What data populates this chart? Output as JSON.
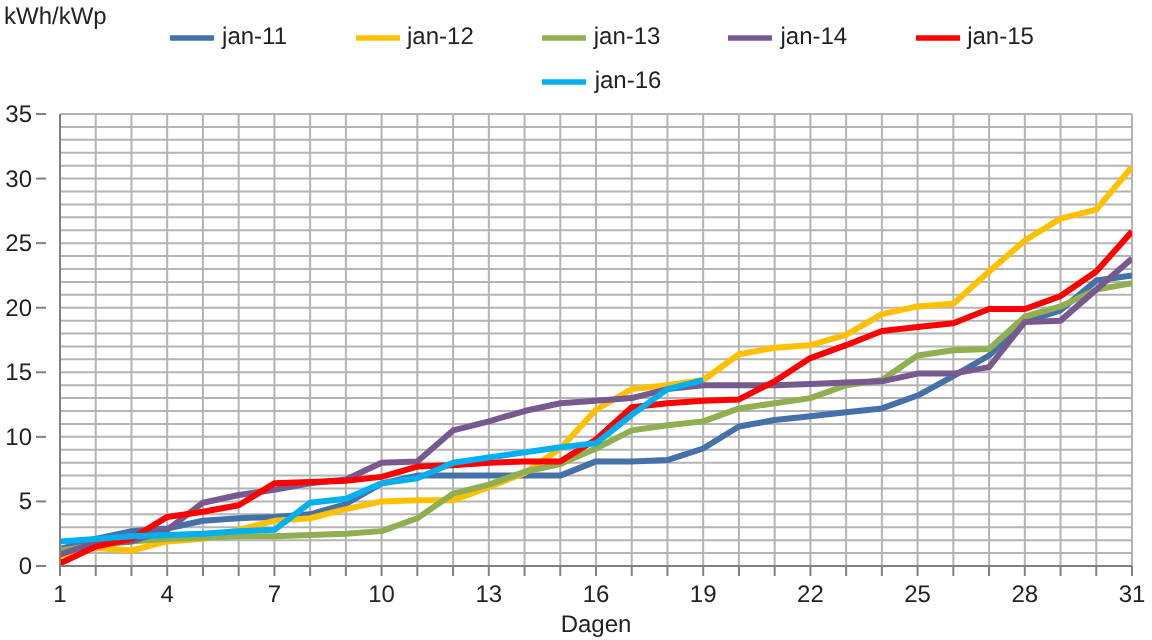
{
  "chart_data": {
    "type": "line",
    "ylabel": "kWh/kWp",
    "xlabel": "Dagen",
    "x": [
      1,
      2,
      3,
      4,
      5,
      6,
      7,
      8,
      9,
      10,
      11,
      12,
      13,
      14,
      15,
      16,
      17,
      18,
      19,
      20,
      21,
      22,
      23,
      24,
      25,
      26,
      27,
      28,
      29,
      30,
      31
    ],
    "xlim": [
      1,
      31
    ],
    "xticks": [
      1,
      {
        "value": 2,
        "label": null
      },
      {
        "value": 3,
        "label": null
      },
      4,
      {
        "value": 5,
        "label": null
      },
      {
        "value": 6,
        "label": null
      },
      7,
      {
        "value": 8,
        "label": null
      },
      {
        "value": 9,
        "label": null
      },
      10,
      {
        "value": 11,
        "label": null
      },
      {
        "value": 12,
        "label": null
      },
      13,
      {
        "value": 14,
        "label": null
      },
      {
        "value": 15,
        "label": null
      },
      16,
      {
        "value": 17,
        "label": null
      },
      {
        "value": 18,
        "label": null
      },
      19,
      {
        "value": 20,
        "label": null
      },
      {
        "value": 21,
        "label": null
      },
      22,
      {
        "value": 23,
        "label": null
      },
      {
        "value": 24,
        "label": null
      },
      25,
      {
        "value": 26,
        "label": null
      },
      {
        "value": 27,
        "label": null
      },
      28,
      {
        "value": 29,
        "label": null
      },
      {
        "value": 30,
        "label": null
      },
      31
    ],
    "ylim": [
      0,
      35
    ],
    "yticks": [
      0,
      {
        "value": 1,
        "label": null
      },
      {
        "value": 2,
        "label": null
      },
      {
        "value": 3,
        "label": null
      },
      {
        "value": 4,
        "label": null
      },
      5,
      {
        "value": 6,
        "label": null
      },
      {
        "value": 7,
        "label": null
      },
      {
        "value": 8,
        "label": null
      },
      {
        "value": 9,
        "label": null
      },
      10,
      {
        "value": 11,
        "label": null
      },
      {
        "value": 12,
        "label": null
      },
      {
        "value": 13,
        "label": null
      },
      {
        "value": 14,
        "label": null
      },
      15,
      {
        "value": 16,
        "label": null
      },
      {
        "value": 17,
        "label": null
      },
      {
        "value": 18,
        "label": null
      },
      {
        "value": 19,
        "label": null
      },
      20,
      {
        "value": 21,
        "label": null
      },
      {
        "value": 22,
        "label": null
      },
      {
        "value": 23,
        "label": null
      },
      {
        "value": 24,
        "label": null
      },
      25,
      {
        "value": 26,
        "label": null
      },
      {
        "value": 27,
        "label": null
      },
      {
        "value": 28,
        "label": null
      },
      {
        "value": 29,
        "label": null
      },
      30,
      {
        "value": 31,
        "label": null
      },
      {
        "value": 32,
        "label": null
      },
      {
        "value": 33,
        "label": null
      },
      {
        "value": 34,
        "label": null
      },
      35
    ],
    "grid": true,
    "legend": "top",
    "marker": "none",
    "line_style": "solid",
    "series": [
      {
        "name": "jan-11",
        "color": "#4472a8",
        "values": [
          1.3,
          2.1,
          2.7,
          2.9,
          3.5,
          3.7,
          3.8,
          4.0,
          4.8,
          6.4,
          7.0,
          7.0,
          7.0,
          7.0,
          7.0,
          8.1,
          8.1,
          8.2,
          9.1,
          10.8,
          11.3,
          11.6,
          11.9,
          12.2,
          13.2,
          14.7,
          16.3,
          18.9,
          19.8,
          22.1,
          22.5
        ]
      },
      {
        "name": "jan-12",
        "color": "#ffc000",
        "values": [
          0.6,
          1.4,
          1.2,
          1.9,
          2.1,
          2.8,
          3.5,
          3.7,
          4.4,
          5.0,
          5.1,
          5.1,
          6.1,
          7.2,
          9.1,
          12.1,
          13.7,
          14.0,
          14.4,
          16.4,
          16.9,
          17.1,
          17.9,
          19.5,
          20.1,
          20.3,
          22.8,
          25.2,
          26.9,
          27.6,
          30.9
        ]
      },
      {
        "name": "jan-13",
        "color": "#8faf50",
        "values": [
          1.2,
          1.6,
          1.9,
          2.1,
          2.2,
          2.3,
          2.3,
          2.4,
          2.5,
          2.7,
          3.7,
          5.6,
          6.3,
          7.3,
          7.9,
          9.1,
          10.5,
          10.9,
          11.2,
          12.2,
          12.6,
          13.0,
          14.0,
          14.4,
          16.3,
          16.7,
          16.8,
          19.3,
          20.1,
          21.4,
          21.9
        ]
      },
      {
        "name": "jan-14",
        "color": "#77598f",
        "values": [
          0.9,
          1.8,
          1.9,
          2.8,
          4.9,
          5.5,
          5.9,
          6.4,
          6.7,
          8.0,
          8.1,
          10.5,
          11.2,
          12.0,
          12.6,
          12.8,
          13.0,
          13.7,
          14.0,
          14.0,
          14.0,
          14.1,
          14.2,
          14.3,
          14.9,
          14.9,
          15.4,
          18.9,
          19.0,
          21.4,
          23.8
        ]
      },
      {
        "name": "jan-15",
        "color": "#ff0000",
        "values": [
          0.2,
          1.5,
          2.1,
          3.8,
          4.2,
          4.7,
          6.4,
          6.5,
          6.6,
          6.9,
          7.7,
          7.8,
          8.0,
          8.1,
          8.1,
          9.8,
          12.3,
          12.6,
          12.8,
          12.9,
          14.3,
          16.1,
          17.1,
          18.2,
          18.5,
          18.8,
          19.9,
          19.9,
          20.9,
          22.8,
          25.9
        ]
      },
      {
        "name": "jan-16",
        "color": "#00b0f0",
        "values": [
          1.9,
          2.1,
          2.3,
          2.4,
          2.5,
          2.7,
          2.8,
          4.9,
          5.2,
          6.4,
          6.8,
          8.0,
          8.4,
          8.8,
          9.2,
          9.5,
          11.7,
          13.7,
          14.4,
          null,
          null,
          null,
          null,
          null,
          null,
          null,
          null,
          null,
          null,
          null,
          null
        ]
      }
    ]
  }
}
